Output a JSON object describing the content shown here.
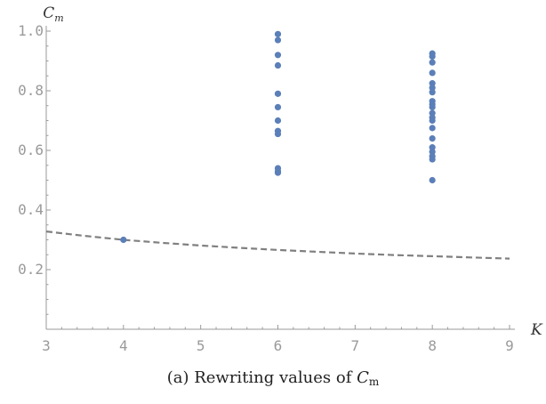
{
  "caption": {
    "text": "(a) Rewriting values of ",
    "math_main": "C",
    "math_sub": "m"
  },
  "chart_data": {
    "type": "scatter",
    "xlabel": "K",
    "ylabel_main": "C",
    "ylabel_sub": "m",
    "xlim": [
      3,
      9
    ],
    "ylim": [
      0,
      1.0
    ],
    "xticks": [
      3,
      4,
      5,
      6,
      7,
      8,
      9
    ],
    "yticks": [
      0.2,
      0.4,
      0.6,
      0.8,
      1.0
    ],
    "ytick_labels": [
      "0.2",
      "0.4",
      "0.6",
      "0.8",
      "1.0"
    ],
    "grid": false,
    "points_color": "#5b7fb8",
    "curve_color": "#808080",
    "series": [
      {
        "type": "scatter",
        "points": [
          {
            "x": 4,
            "y": 0.3
          },
          {
            "x": 6,
            "y": 0.99
          },
          {
            "x": 6,
            "y": 0.97
          },
          {
            "x": 6,
            "y": 0.92
          },
          {
            "x": 6,
            "y": 0.885
          },
          {
            "x": 6,
            "y": 0.79
          },
          {
            "x": 6,
            "y": 0.745
          },
          {
            "x": 6,
            "y": 0.7
          },
          {
            "x": 6,
            "y": 0.665
          },
          {
            "x": 6,
            "y": 0.655
          },
          {
            "x": 6,
            "y": 0.54
          },
          {
            "x": 6,
            "y": 0.53
          },
          {
            "x": 6,
            "y": 0.525
          },
          {
            "x": 8,
            "y": 0.925
          },
          {
            "x": 8,
            "y": 0.915
          },
          {
            "x": 8,
            "y": 0.895
          },
          {
            "x": 8,
            "y": 0.86
          },
          {
            "x": 8,
            "y": 0.825
          },
          {
            "x": 8,
            "y": 0.81
          },
          {
            "x": 8,
            "y": 0.795
          },
          {
            "x": 8,
            "y": 0.765
          },
          {
            "x": 8,
            "y": 0.755
          },
          {
            "x": 8,
            "y": 0.745
          },
          {
            "x": 8,
            "y": 0.725
          },
          {
            "x": 8,
            "y": 0.71
          },
          {
            "x": 8,
            "y": 0.7
          },
          {
            "x": 8,
            "y": 0.675
          },
          {
            "x": 8,
            "y": 0.64
          },
          {
            "x": 8,
            "y": 0.61
          },
          {
            "x": 8,
            "y": 0.595
          },
          {
            "x": 8,
            "y": 0.58
          },
          {
            "x": 8,
            "y": 0.57
          },
          {
            "x": 8,
            "y": 0.5
          }
        ]
      },
      {
        "type": "line",
        "style": "dashed",
        "x": [
          3,
          3.5,
          4,
          4.5,
          5,
          5.5,
          6,
          6.5,
          7,
          7.5,
          8,
          8.5,
          9
        ],
        "y": [
          0.328,
          0.313,
          0.3,
          0.29,
          0.281,
          0.273,
          0.266,
          0.26,
          0.254,
          0.249,
          0.245,
          0.241,
          0.237
        ]
      }
    ]
  }
}
